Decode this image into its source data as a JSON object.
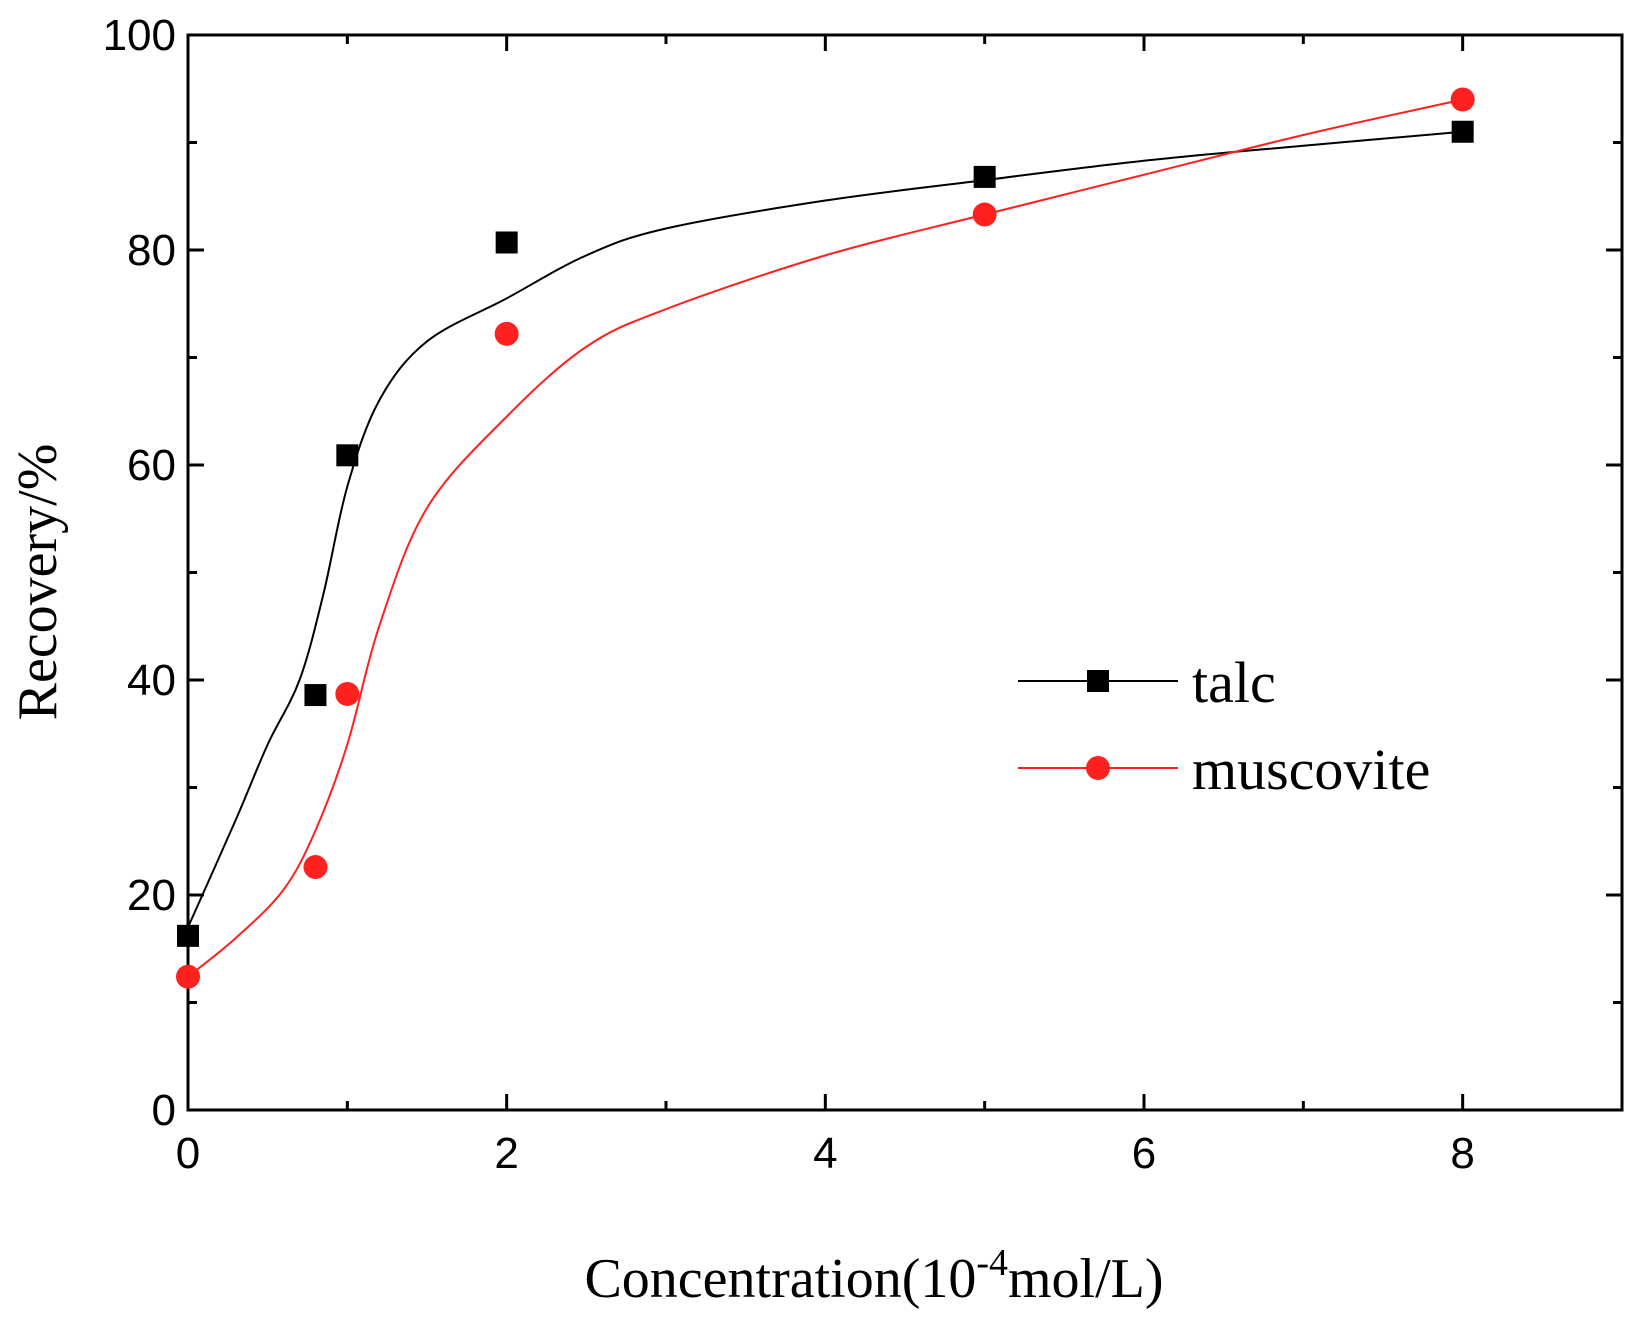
{
  "chart_data": {
    "type": "line",
    "title": "",
    "xlabel": "Concentration(10",
    "xlabel_superscript": "-4",
    "xlabel_suffix": "mol/L)",
    "ylabel": "Recovery/%",
    "xlim": [
      0,
      9
    ],
    "ylim": [
      0,
      100
    ],
    "xticks": [
      0,
      2,
      4,
      6,
      8
    ],
    "xticks_minor": [
      1,
      3,
      5,
      7,
      9
    ],
    "yticks": [
      0,
      20,
      40,
      60,
      80,
      100
    ],
    "yticks_minor": [
      10,
      30,
      50,
      70,
      90
    ],
    "grid": false,
    "legend_position": "center-right",
    "series": [
      {
        "name": "talc",
        "marker": "square",
        "color": "#000000",
        "x": [
          0,
          0.8,
          1,
          2,
          5,
          8
        ],
        "y": [
          16.2,
          38.6,
          60.9,
          80.7,
          86.8,
          91.0
        ],
        "fit_x": [
          0,
          0.3,
          0.5,
          0.7,
          0.85,
          1.0,
          1.2,
          1.5,
          2.0,
          2.5,
          3.0,
          4.0,
          5.0,
          6.0,
          7.0,
          8.0
        ],
        "fit_y": [
          17,
          27,
          34,
          40,
          48,
          58,
          66,
          71.5,
          75.5,
          79.5,
          82,
          84.6,
          86.5,
          88.3,
          89.7,
          91
        ]
      },
      {
        "name": "muscovite",
        "marker": "circle",
        "color": "#ff2020",
        "x": [
          0,
          0.8,
          1,
          2,
          5,
          8
        ],
        "y": [
          12.4,
          22.6,
          38.7,
          72.2,
          83.3,
          94.0
        ],
        "fit_x": [
          0,
          0.3,
          0.6,
          0.8,
          1.0,
          1.2,
          1.5,
          2.0,
          2.5,
          3.0,
          4.0,
          5.0,
          6.0,
          7.0,
          8.0
        ],
        "fit_y": [
          12.4,
          16,
          20.5,
          26,
          34,
          45,
          56,
          64.5,
          71,
          74.5,
          79.5,
          83.3,
          87,
          90.7,
          94
        ]
      }
    ]
  }
}
